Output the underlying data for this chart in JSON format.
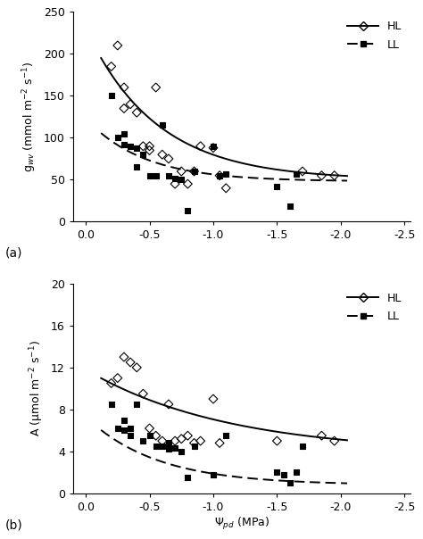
{
  "panel_a": {
    "HL_x": [
      -0.2,
      -0.25,
      -0.3,
      -0.3,
      -0.35,
      -0.4,
      -0.45,
      -0.5,
      -0.5,
      -0.55,
      -0.6,
      -0.65,
      -0.7,
      -0.75,
      -0.8,
      -0.85,
      -0.9,
      -1.0,
      -1.05,
      -1.1,
      -1.7,
      -1.85,
      -1.95
    ],
    "HL_y": [
      185,
      210,
      160,
      135,
      140,
      130,
      90,
      85,
      90,
      160,
      80,
      75,
      45,
      60,
      45,
      60,
      90,
      88,
      55,
      40,
      60,
      55,
      55
    ],
    "LL_x": [
      -0.2,
      -0.25,
      -0.3,
      -0.3,
      -0.35,
      -0.4,
      -0.4,
      -0.45,
      -0.5,
      -0.55,
      -0.6,
      -0.65,
      -0.7,
      -0.75,
      -0.8,
      -0.85,
      -1.0,
      -1.05,
      -1.1,
      -1.5,
      -1.6,
      -1.65
    ],
    "LL_y": [
      150,
      100,
      105,
      92,
      90,
      88,
      65,
      80,
      55,
      55,
      115,
      55,
      52,
      50,
      13,
      60,
      90,
      55,
      57,
      42,
      18,
      57
    ],
    "HL_curve_a": 180.0,
    "HL_curve_b": 1.8,
    "HL_curve_c": 50.0,
    "LL_curve_a": 75.0,
    "LL_curve_b": 2.2,
    "LL_curve_c": 48.0,
    "ylabel": "g$_{wv}$ (mmol m$^{-2}$ s$^{-1}$)",
    "ylim": [
      0,
      250
    ],
    "yticks": [
      0,
      50,
      100,
      150,
      200,
      250
    ],
    "label": "(a)"
  },
  "panel_b": {
    "HL_x": [
      -0.2,
      -0.25,
      -0.3,
      -0.35,
      -0.4,
      -0.45,
      -0.5,
      -0.55,
      -0.6,
      -0.65,
      -0.7,
      -0.75,
      -0.8,
      -0.85,
      -0.9,
      -1.0,
      -1.05,
      -1.5,
      -1.85,
      -1.95
    ],
    "HL_y": [
      10.5,
      11.0,
      13.0,
      12.5,
      12.0,
      9.5,
      6.2,
      5.5,
      5.0,
      8.5,
      5.0,
      5.2,
      5.5,
      4.8,
      5.0,
      9.0,
      4.8,
      5.0,
      5.5,
      5.0
    ],
    "LL_x": [
      -0.2,
      -0.25,
      -0.3,
      -0.3,
      -0.35,
      -0.35,
      -0.4,
      -0.45,
      -0.5,
      -0.55,
      -0.6,
      -0.65,
      -0.65,
      -0.7,
      -0.75,
      -0.8,
      -0.85,
      -1.0,
      -1.1,
      -1.5,
      -1.55,
      -1.6,
      -1.65,
      -1.7
    ],
    "LL_y": [
      8.5,
      6.2,
      6.0,
      7.0,
      6.2,
      5.5,
      8.5,
      5.0,
      5.5,
      4.5,
      4.5,
      4.8,
      4.2,
      4.3,
      4.0,
      1.5,
      4.5,
      1.8,
      5.5,
      2.0,
      1.8,
      1.0,
      2.0,
      4.5
    ],
    "HL_curve_a": 8.0,
    "HL_curve_b": 0.9,
    "HL_curve_c": 3.8,
    "LL_curve_a": 6.5,
    "LL_curve_b": 1.8,
    "LL_curve_c": 0.8,
    "ylabel": "A (μmol m$^{-2}$ s$^{-1}$)",
    "ylim": [
      0,
      20
    ],
    "yticks": [
      0,
      4,
      8,
      12,
      16,
      20
    ],
    "label": "(b)"
  },
  "xlabel": "$\\Psi_{pd}$ (MPa)",
  "xticks": [
    0.0,
    -0.5,
    -1.0,
    -1.5,
    -2.0,
    -2.5
  ],
  "xtick_labels": [
    "0.0",
    "-0.5",
    "-1.0",
    "-1.5",
    "-2.0",
    "-2.5"
  ],
  "legend_HL": "HL",
  "legend_LL": "LL",
  "background_color": "#ffffff"
}
